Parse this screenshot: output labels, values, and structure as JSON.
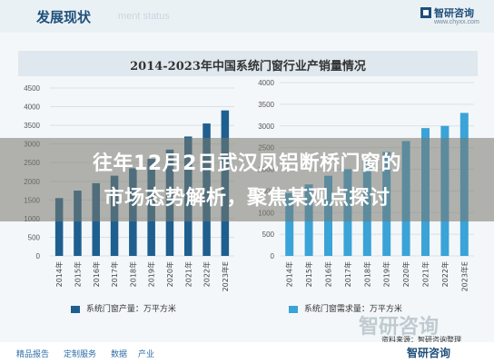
{
  "header": {
    "title": "发展现状",
    "subtitle": "ment status"
  },
  "brand": {
    "name": "智研咨询",
    "url": "www.chyxx.com",
    "color": "#1f4f7a"
  },
  "chart_title": "2014-2023年中国系统门窗行业产销量情况",
  "overlay": {
    "line1": "往年12月2日武汉凤铝断桥门窗的",
    "line2": "市场态势解析，聚焦某观点探讨"
  },
  "chart_data": [
    {
      "type": "bar",
      "categories": [
        "2014年",
        "2015年",
        "2016年",
        "2017年",
        "2018年",
        "2019年",
        "2020年",
        "2021年",
        "2022年",
        "2023年E"
      ],
      "series": [
        {
          "name": "系统门窗产量：万平方米",
          "values": [
            1550,
            1750,
            1950,
            2150,
            2350,
            2600,
            2850,
            3200,
            3550,
            3900
          ]
        }
      ],
      "ylim": [
        0,
        4500
      ],
      "yticks": [
        0,
        500,
        1000,
        1500,
        2000,
        2500,
        3000,
        3500,
        4000,
        4500
      ],
      "color": "#1f5f8f",
      "grid": true,
      "legend": "bottom"
    },
    {
      "type": "bar",
      "categories": [
        "2014年",
        "2015年",
        "2016年",
        "2017年",
        "2018年",
        "2019年",
        "2020年",
        "2021年",
        "2022年",
        "2023年E"
      ],
      "series": [
        {
          "name": "系统门窗需求量：万平方米",
          "values": [
            1450,
            1650,
            1850,
            2000,
            2200,
            2400,
            2650,
            2950,
            3000,
            3300
          ]
        }
      ],
      "ylim": [
        0,
        4000
      ],
      "yticks": [
        0,
        500,
        1000,
        1500,
        2000,
        2500,
        3000,
        3500,
        4000
      ],
      "color": "#3aa3d8",
      "grid": true,
      "legend": "bottom"
    }
  ],
  "source": "资料来源：智研咨询整理",
  "watermark": "智研咨询",
  "footer": {
    "items": [
      "精品报告",
      "定制服务",
      "数据",
      "产业"
    ]
  }
}
